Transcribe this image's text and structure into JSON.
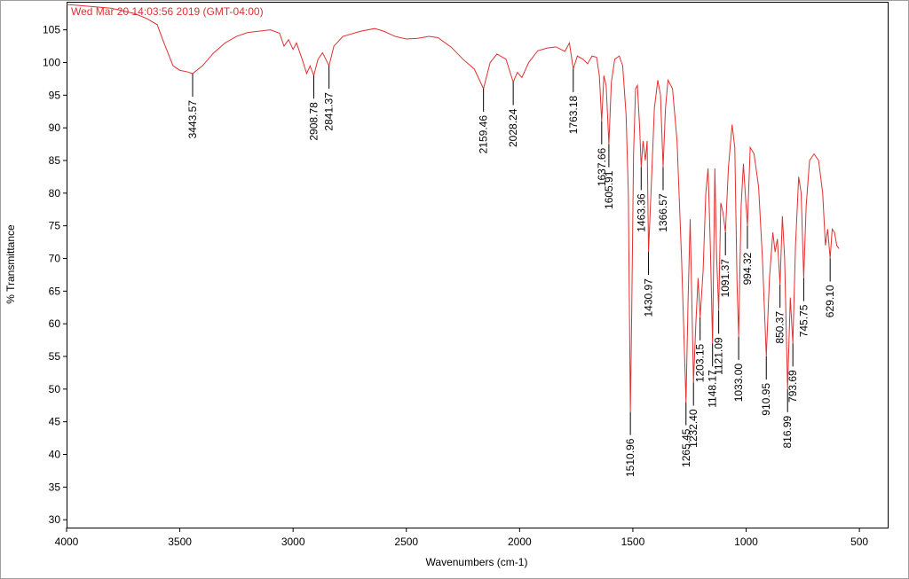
{
  "chart_data": {
    "type": "line",
    "title": "Wed Mar 20 14:03:56 2019 (GMT-04:00)",
    "x_label": "Wavenumbers (cm-1)",
    "y_label": "% Transmittance",
    "color": "#e03030",
    "xlim": [
      4000,
      375
    ],
    "ylim": [
      28.8,
      109.3
    ],
    "xticks": [
      4000,
      3500,
      3000,
      2500,
      2000,
      1500,
      1000,
      500
    ],
    "yticks": [
      30,
      35,
      40,
      45,
      50,
      55,
      60,
      65,
      70,
      75,
      80,
      85,
      90,
      95,
      100,
      105
    ],
    "grid": false,
    "x": [
      4000,
      3900,
      3800,
      3700,
      3650,
      3600,
      3570,
      3530,
      3500,
      3470,
      3443.57,
      3400,
      3350,
      3300,
      3250,
      3200,
      3100,
      3060,
      3040,
      3020,
      3000,
      2985,
      2960,
      2940,
      2925,
      2908.78,
      2890,
      2870,
      2841.37,
      2820,
      2780,
      2700,
      2640,
      2600,
      2550,
      2500,
      2450,
      2400,
      2360,
      2300,
      2250,
      2200,
      2159.46,
      2130,
      2100,
      2060,
      2028.24,
      2010,
      1990,
      1960,
      1920,
      1880,
      1840,
      1800,
      1780,
      1763.18,
      1745,
      1720,
      1700,
      1680,
      1660,
      1648,
      1637.66,
      1628,
      1618,
      1605.91,
      1595,
      1580,
      1560,
      1545,
      1530,
      1520,
      1510.96,
      1505,
      1497,
      1488,
      1480,
      1470,
      1463.36,
      1455,
      1445,
      1437,
      1430.97,
      1420,
      1405,
      1390,
      1378,
      1366.57,
      1356,
      1345,
      1325,
      1305,
      1285,
      1265.45,
      1256,
      1247,
      1232.4,
      1222,
      1212,
      1203.15,
      1190,
      1178,
      1168,
      1158,
      1148.17,
      1138,
      1130,
      1121.09,
      1112,
      1102,
      1091.37,
      1078,
      1062,
      1050,
      1040,
      1033,
      1022,
      1012,
      1002,
      994.32,
      982,
      965,
      945,
      928,
      910.95,
      897,
      882,
      872,
      862,
      850.37,
      840,
      830,
      816.99,
      805,
      793.69,
      782,
      768,
      757,
      745.75,
      735,
      720,
      700,
      680,
      662,
      650,
      640,
      629.1,
      620,
      610,
      600,
      590
    ],
    "values": [
      108.9,
      108.6,
      108.3,
      107.5,
      106.8,
      105.8,
      103,
      99.5,
      98.8,
      98.6,
      98.3,
      99.5,
      101.5,
      103,
      104,
      104.6,
      105,
      104.5,
      102.5,
      103.5,
      102,
      103,
      100.5,
      98.3,
      99.5,
      98,
      100.5,
      101.5,
      99.5,
      102.5,
      104,
      104.8,
      105.2,
      104.8,
      104,
      103.6,
      103.7,
      104,
      103.8,
      102.3,
      100.5,
      99,
      96,
      100,
      101.3,
      100.5,
      97,
      98.5,
      97.7,
      100,
      101.8,
      102.2,
      102.4,
      101.7,
      103,
      99,
      101,
      100.5,
      99.8,
      101,
      100.8,
      98,
      91,
      98,
      96.5,
      87.5,
      97,
      100.5,
      101,
      99.5,
      92,
      80,
      46.5,
      62,
      86,
      96,
      96.5,
      90,
      84,
      88,
      85,
      88,
      71,
      80,
      93,
      97.3,
      95,
      84,
      93,
      97.3,
      96,
      88,
      70,
      48,
      64,
      76,
      51,
      60,
      67,
      61,
      68,
      80,
      83.8,
      72,
      57,
      83.8,
      70,
      62,
      78.5,
      77,
      74,
      84,
      90.5,
      87,
      66,
      58,
      78,
      84.5,
      79,
      75,
      87,
      86,
      81,
      70,
      55,
      67,
      74,
      71,
      73,
      66,
      76.5,
      70,
      50,
      64,
      57,
      72,
      82.5,
      80,
      67,
      78,
      85,
      86,
      85,
      80,
      72,
      74.5,
      70,
      74.5,
      74,
      72,
      71.5
    ],
    "peaks": [
      {
        "x": 3443.57,
        "y": 98.3,
        "label": "3443.57"
      },
      {
        "x": 2908.78,
        "y": 98,
        "label": "2908.78"
      },
      {
        "x": 2841.37,
        "y": 99.5,
        "label": "2841.37"
      },
      {
        "x": 2159.46,
        "y": 96,
        "label": "2159.46"
      },
      {
        "x": 2028.24,
        "y": 97,
        "label": "2028.24"
      },
      {
        "x": 1763.18,
        "y": 99,
        "label": "1763.18"
      },
      {
        "x": 1637.66,
        "y": 91,
        "label": "1637.66"
      },
      {
        "x": 1605.91,
        "y": 87.5,
        "label": "1605.91"
      },
      {
        "x": 1510.96,
        "y": 46.5,
        "label": "1510.96"
      },
      {
        "x": 1463.36,
        "y": 84,
        "label": "1463.36"
      },
      {
        "x": 1430.97,
        "y": 71,
        "label": "1430.97"
      },
      {
        "x": 1366.57,
        "y": 84,
        "label": "1366.57"
      },
      {
        "x": 1265.45,
        "y": 48,
        "label": "1265.45"
      },
      {
        "x": 1232.4,
        "y": 51,
        "label": "1232.40"
      },
      {
        "x": 1203.15,
        "y": 61,
        "label": "1203.15"
      },
      {
        "x": 1148.17,
        "y": 57,
        "label": "1148.17"
      },
      {
        "x": 1121.09,
        "y": 62,
        "label": "1121.09"
      },
      {
        "x": 1091.37,
        "y": 74,
        "label": "1091.37"
      },
      {
        "x": 1033,
        "y": 58,
        "label": "1033.00"
      },
      {
        "x": 994.32,
        "y": 75,
        "label": "994.32"
      },
      {
        "x": 910.95,
        "y": 55,
        "label": "910.95"
      },
      {
        "x": 850.37,
        "y": 66,
        "label": "850.37"
      },
      {
        "x": 816.99,
        "y": 50,
        "label": "816.99"
      },
      {
        "x": 793.69,
        "y": 57,
        "label": "793.69"
      },
      {
        "x": 745.75,
        "y": 67,
        "label": "745.75"
      },
      {
        "x": 629.1,
        "y": 70,
        "label": "629.10"
      }
    ]
  }
}
